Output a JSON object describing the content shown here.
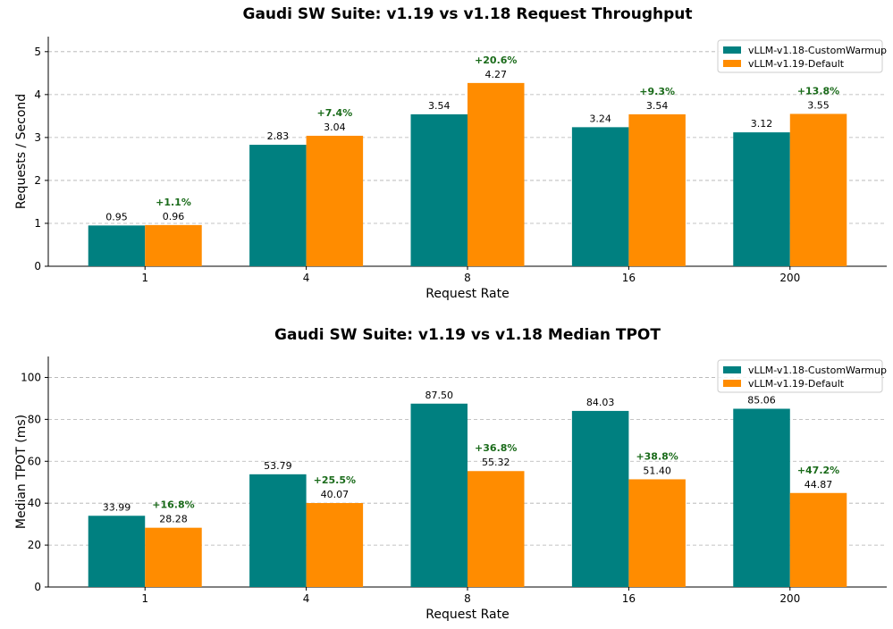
{
  "chart_data": [
    {
      "type": "bar",
      "title": "Gaudi SW Suite: v1.19 vs v1.18 Request Throughput",
      "xlabel": "Request Rate",
      "ylabel": "Requests / Second",
      "categories": [
        "1",
        "4",
        "8",
        "16",
        "200"
      ],
      "ylim": [
        0,
        5.35
      ],
      "yticks": [
        "0",
        "1",
        "2",
        "3",
        "4",
        "5"
      ],
      "grid": true,
      "legend_position": "top-right",
      "series": [
        {
          "name": "vLLM-v1.18-CustomWarmup",
          "color": "#008080",
          "values": [
            0.95,
            2.83,
            3.54,
            3.24,
            3.12
          ],
          "labels": [
            "0.95",
            "2.83",
            "3.54",
            "3.24",
            "3.12"
          ]
        },
        {
          "name": "vLLM-v1.19-Default",
          "color": "#ff8c00",
          "values": [
            0.96,
            3.04,
            4.27,
            3.54,
            3.55
          ],
          "labels": [
            "0.96",
            "3.04",
            "4.27",
            "3.54",
            "3.55"
          ]
        }
      ],
      "improvements": [
        "+1.1%",
        "+7.4%",
        "+20.6%",
        "+9.3%",
        "+13.8%"
      ]
    },
    {
      "type": "bar",
      "title": "Gaudi SW Suite: v1.19 vs v1.18 Median TPOT",
      "xlabel": "Request Rate",
      "ylabel": "Median TPOT (ms)",
      "categories": [
        "1",
        "4",
        "8",
        "16",
        "200"
      ],
      "ylim": [
        0,
        110
      ],
      "yticks": [
        "0",
        "20",
        "40",
        "60",
        "80",
        "100"
      ],
      "grid": true,
      "legend_position": "top-right",
      "series": [
        {
          "name": "vLLM-v1.18-CustomWarmup",
          "color": "#008080",
          "values": [
            33.99,
            53.79,
            87.5,
            84.03,
            85.06
          ],
          "labels": [
            "33.99",
            "53.79",
            "87.50",
            "84.03",
            "85.06"
          ]
        },
        {
          "name": "vLLM-v1.19-Default",
          "color": "#ff8c00",
          "values": [
            28.28,
            40.07,
            55.32,
            51.4,
            44.87
          ],
          "labels": [
            "28.28",
            "40.07",
            "55.32",
            "51.40",
            "44.87"
          ]
        }
      ],
      "improvements": [
        "+16.8%",
        "+25.5%",
        "+36.8%",
        "+38.8%",
        "+47.2%"
      ]
    }
  ]
}
